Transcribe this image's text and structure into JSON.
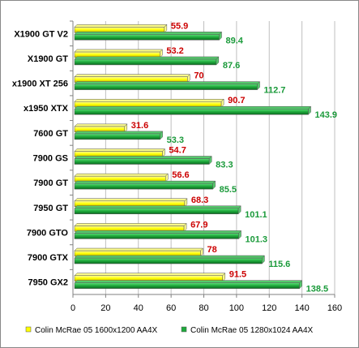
{
  "chart_data": {
    "type": "bar",
    "orientation": "horizontal",
    "categories": [
      "X1900 GT V2",
      "X1900 GT",
      "x1900 XT 256",
      "x1950 XTX",
      "7600 GT",
      "7900 GS",
      "7900 GT",
      "7950 GT",
      "7900 GTO",
      "7900 GTX",
      "7950 GX2"
    ],
    "series": [
      {
        "name": "Colin McRae 05 1600x1200 AA4X",
        "values": [
          55.9,
          53.2,
          70,
          90.7,
          31.6,
          54.7,
          56.6,
          68.3,
          67.9,
          78,
          91.5
        ],
        "labels": [
          "55.9",
          "53.2",
          "70",
          "90.7",
          "31.6",
          "54.7",
          "56.6",
          "68.3",
          "67.9",
          "78",
          "91.5"
        ],
        "color": "#ffff00",
        "label_color": "#cc0000"
      },
      {
        "name": "Colin McRae 05 1280x1024 AA4X",
        "values": [
          89.4,
          87.6,
          112.7,
          143.9,
          53.3,
          83.3,
          85.5,
          101.1,
          101.3,
          115.6,
          138.5
        ],
        "labels": [
          "89.4",
          "87.6",
          "112.7",
          "143.9",
          "53.3",
          "83.3",
          "85.5",
          "101.1",
          "101.3",
          "115.6",
          "138.5"
        ],
        "color": "#1faa3c",
        "label_color": "#1a9a3a"
      }
    ],
    "xticks": [
      0,
      20,
      40,
      60,
      80,
      100,
      120,
      140,
      160
    ],
    "xtick_labels": [
      "0",
      "20",
      "40",
      "60",
      "80",
      "100",
      "120",
      "140",
      "160"
    ],
    "xlim": [
      0,
      160
    ],
    "grid": true,
    "legend": "bottom"
  }
}
